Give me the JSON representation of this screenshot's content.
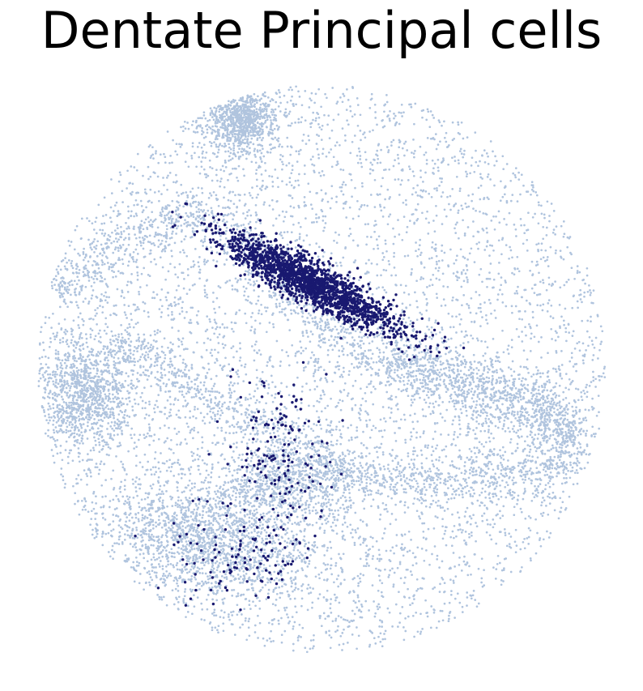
{
  "chart_data": {
    "type": "scatter",
    "title": "Dentate Principal cells",
    "axes_visible": false,
    "grid": false,
    "legend": "none",
    "point_size": "small",
    "xlim": [
      0,
      100
    ],
    "ylim": [
      0,
      100
    ],
    "series": [
      {
        "role": "background",
        "color": "#b0c4de",
        "regions": [
          {
            "shape": "disk",
            "center": [
              50,
              50
            ],
            "radius": 49,
            "density": 0.35,
            "count": 5200
          },
          {
            "shape": "ellipse",
            "center": [
              36,
              93
            ],
            "rx": 6,
            "ry": 6,
            "angle": 0,
            "count": 900
          },
          {
            "shape": "ellipse",
            "center": [
              9,
              46
            ],
            "rx": 9,
            "ry": 10,
            "angle": 0,
            "count": 1100
          },
          {
            "shape": "ellipse",
            "center": [
              30,
              20
            ],
            "rx": 19,
            "ry": 9,
            "angle": -15,
            "count": 1400
          },
          {
            "shape": "band",
            "path": [
              [
                4,
                63
              ],
              [
                18,
                73
              ],
              [
                30,
                77
              ],
              [
                38,
                71
              ],
              [
                48,
                60
              ],
              [
                58,
                52
              ],
              [
                72,
                45
              ],
              [
                88,
                41
              ],
              [
                94,
                38
              ],
              [
                90,
                32
              ],
              [
                78,
                32
              ],
              [
                66,
                30
              ],
              [
                56,
                32
              ],
              [
                44,
                37
              ],
              [
                34,
                43
              ],
              [
                24,
                50
              ],
              [
                14,
                55
              ]
            ],
            "width": 4.5,
            "count": 2600
          },
          {
            "shape": "band",
            "path": [
              [
                62,
                52
              ],
              [
                76,
                49
              ],
              [
                90,
                44
              ],
              [
                94,
                38
              ]
            ],
            "width": 4,
            "count": 700
          },
          {
            "shape": "ellipse",
            "center": [
              44,
              30
            ],
            "rx": 14,
            "ry": 8,
            "angle": 10,
            "count": 900
          }
        ]
      },
      {
        "role": "highlight",
        "name": "Dentate Principal cells",
        "color": "#191970",
        "regions": [
          {
            "shape": "ellipse",
            "center": [
              48,
              65
            ],
            "rx": 17,
            "ry": 3.6,
            "angle": -28,
            "count": 1800
          },
          {
            "shape": "ellipse",
            "center": [
              42,
              34
            ],
            "rx": 9,
            "ry": 16,
            "angle": 0,
            "count": 160
          },
          {
            "shape": "ellipse",
            "center": [
              35,
              18
            ],
            "rx": 12,
            "ry": 8,
            "angle": 0,
            "count": 110
          }
        ]
      }
    ]
  }
}
